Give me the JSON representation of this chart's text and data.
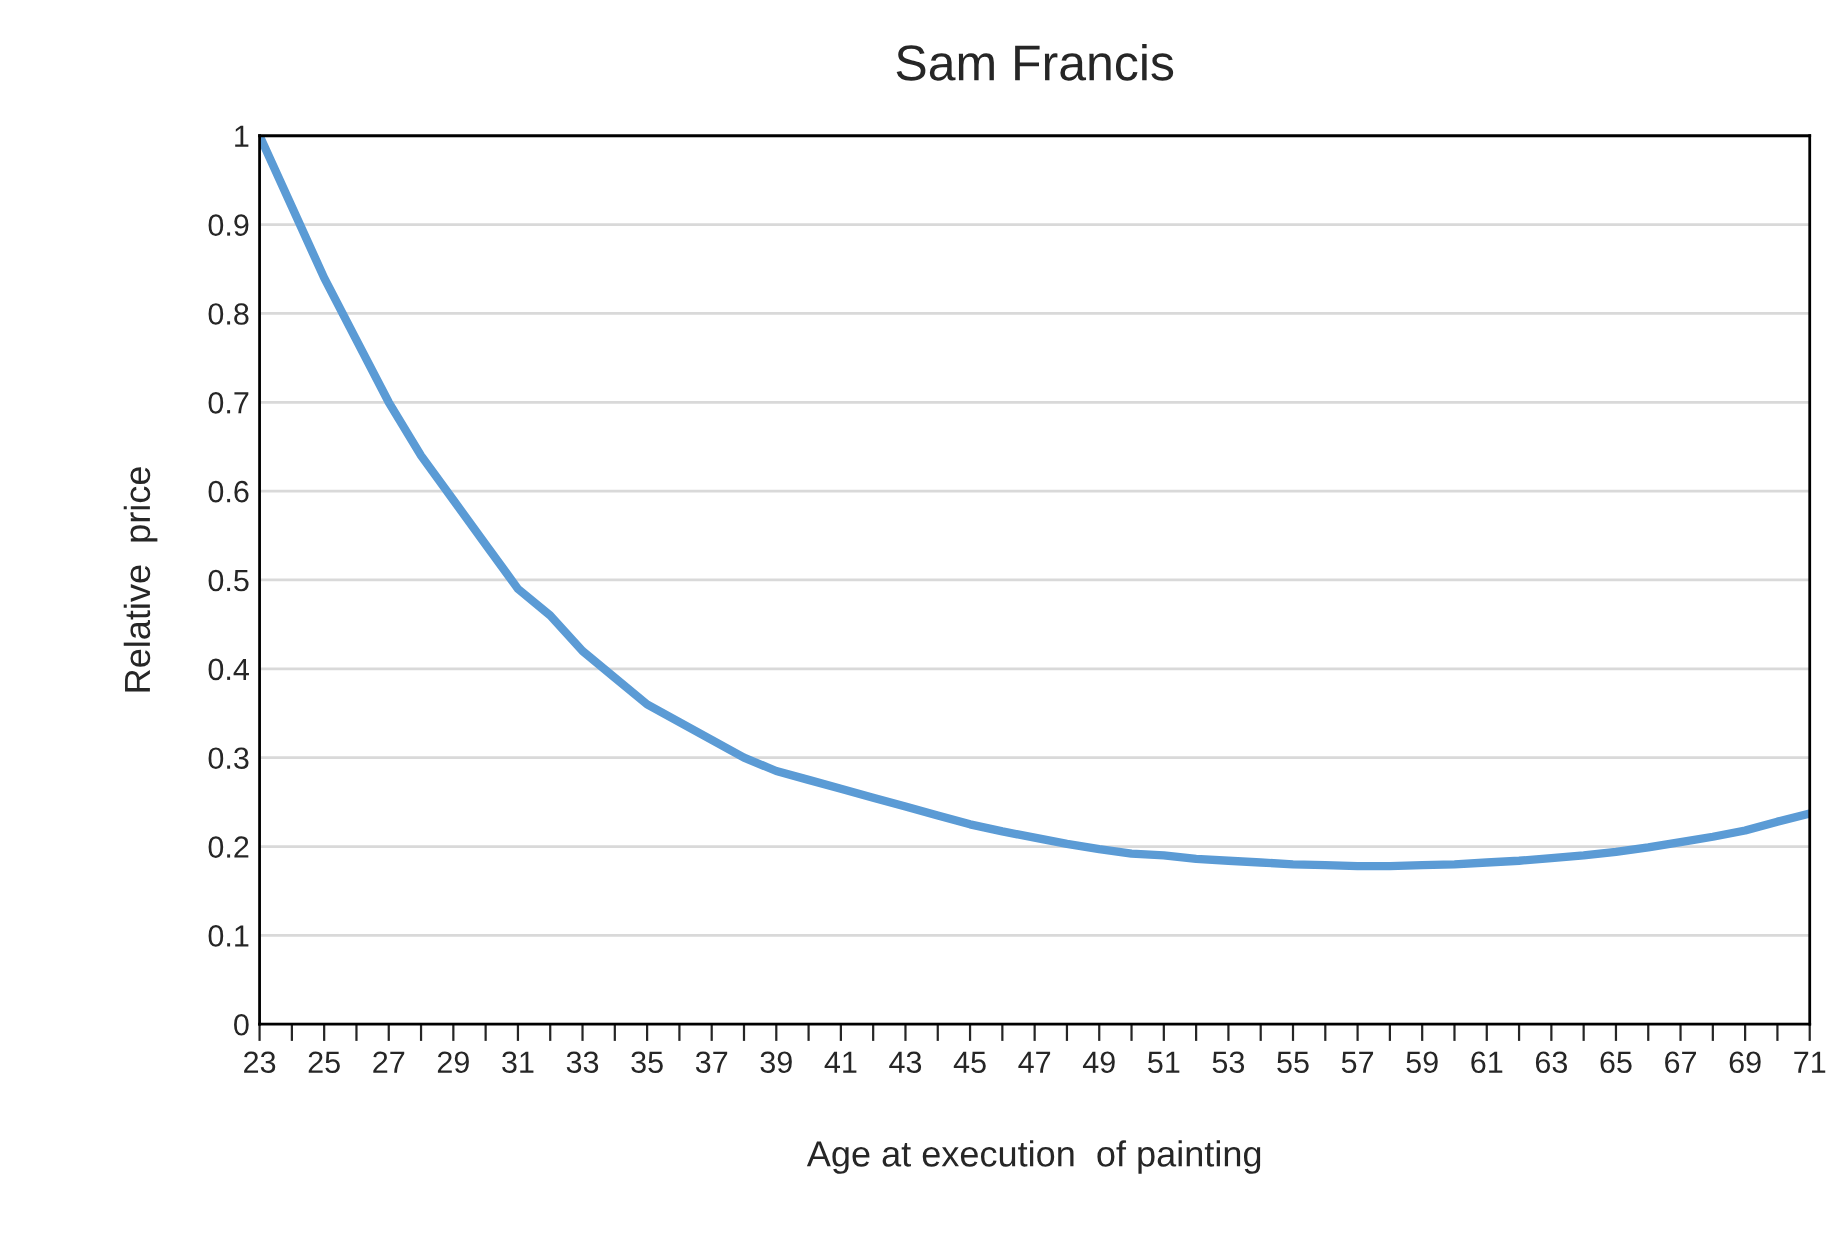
{
  "chart_data": {
    "type": "line",
    "title": "Sam Francis",
    "xlabel": "Age at execution  of painting",
    "ylabel": "Relative  price",
    "categories": [
      "23",
      null,
      "25",
      null,
      "27",
      null,
      "29",
      null,
      "31",
      null,
      "33",
      null,
      "35",
      null,
      "37",
      null,
      "39",
      null,
      "41",
      null,
      "43",
      null,
      "45",
      null,
      "47",
      null,
      "49",
      null,
      "51",
      null,
      "53",
      null,
      "55",
      null,
      "57",
      null,
      "59",
      null,
      "61",
      null,
      "63",
      null,
      "65",
      null,
      "67",
      null,
      "69",
      null,
      "71"
    ],
    "series": [
      {
        "color": "#5b9bd5",
        "values": [
          1.0,
          0.92,
          0.84,
          0.77,
          0.7,
          0.64,
          0.59,
          0.54,
          0.49,
          0.46,
          0.42,
          0.39,
          0.36,
          0.34,
          0.32,
          0.3,
          0.285,
          0.275,
          0.265,
          0.255,
          0.245,
          0.235,
          0.225,
          0.217,
          0.21,
          0.203,
          0.197,
          0.192,
          0.19,
          0.186,
          0.184,
          0.182,
          0.18,
          0.179,
          0.178,
          0.178,
          0.179,
          0.18,
          0.182,
          0.184,
          0.187,
          0.19,
          0.194,
          0.199,
          0.205,
          0.211,
          0.218,
          0.228,
          0.237
        ]
      }
    ],
    "ylim": [
      0,
      1
    ],
    "yticks": [
      0,
      0.1,
      0.2,
      0.3,
      0.4,
      0.5,
      0.6,
      0.7,
      0.8,
      0.9,
      1
    ],
    "grid": "y",
    "marker": "none",
    "line_style": "solid"
  }
}
